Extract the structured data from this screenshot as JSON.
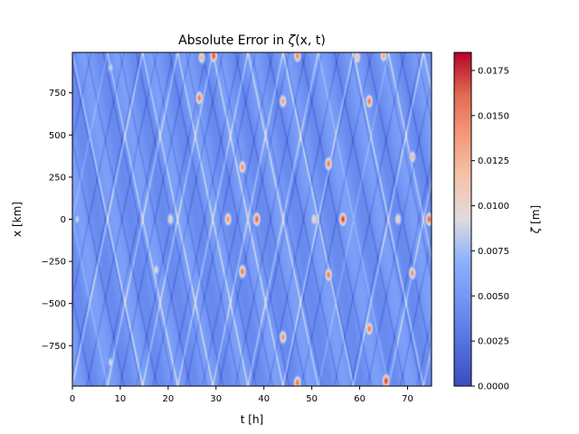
{
  "chart_data": {
    "type": "heatmap",
    "title": "Absolute Error in ζ(x, t)",
    "title_parts": {
      "prefix": "Absolute Error in ",
      "symbol": "ζ",
      "args": "(x, t)"
    },
    "xlabel": "t [h]",
    "ylabel": "x [km]",
    "xlim": [
      0,
      75
    ],
    "ylim": [
      -990,
      990
    ],
    "xticks": [
      0,
      10,
      20,
      30,
      40,
      50,
      60,
      70
    ],
    "yticks": [
      -750,
      -500,
      -250,
      0,
      250,
      500,
      750
    ],
    "xtick_labels": [
      "0",
      "10",
      "20",
      "30",
      "40",
      "50",
      "60",
      "70"
    ],
    "ytick_labels": [
      "−750",
      "−500",
      "−250",
      "0",
      "250",
      "500",
      "750"
    ],
    "colorbar": {
      "label": "ζ [m]",
      "label_parts": {
        "symbol": "ζ",
        "unit": "[m]"
      },
      "min": 0.0,
      "max": 0.0185,
      "ticks": [
        0.0,
        0.0025,
        0.005,
        0.0075,
        0.01,
        0.0125,
        0.015,
        0.0175
      ],
      "tick_labels": [
        "0.0000",
        "0.0025",
        "0.0050",
        "0.0075",
        "0.0100",
        "0.0125",
        "0.0150",
        "0.0175"
      ],
      "colormap": "coolwarm"
    },
    "values_description_hotspots": [
      {
        "t": 1,
        "x": 0,
        "value": 0.009
      },
      {
        "t": 8,
        "x": -850,
        "value": 0.0095
      },
      {
        "t": 8,
        "x": 900,
        "value": 0.009
      },
      {
        "t": 17.5,
        "x": -300,
        "value": 0.01
      },
      {
        "t": 20.5,
        "x": 0,
        "value": 0.011
      },
      {
        "t": 26.5,
        "x": 720,
        "value": 0.0155
      },
      {
        "t": 27,
        "x": 960,
        "value": 0.013
      },
      {
        "t": 29.5,
        "x": 970,
        "value": 0.017
      },
      {
        "t": 32.5,
        "x": 0,
        "value": 0.0145
      },
      {
        "t": 35.5,
        "x": 310,
        "value": 0.0145
      },
      {
        "t": 35.5,
        "x": -310,
        "value": 0.0155
      },
      {
        "t": 38.5,
        "x": 0,
        "value": 0.0165
      },
      {
        "t": 44,
        "x": 700,
        "value": 0.014
      },
      {
        "t": 44,
        "x": -700,
        "value": 0.0145
      },
      {
        "t": 47,
        "x": 970,
        "value": 0.015
      },
      {
        "t": 47,
        "x": -970,
        "value": 0.016
      },
      {
        "t": 50.5,
        "x": 0,
        "value": 0.0115
      },
      {
        "t": 53.5,
        "x": 330,
        "value": 0.0155
      },
      {
        "t": 53.5,
        "x": -330,
        "value": 0.0155
      },
      {
        "t": 56.5,
        "x": 0,
        "value": 0.0175
      },
      {
        "t": 59.5,
        "x": 960,
        "value": 0.0125
      },
      {
        "t": 62,
        "x": 700,
        "value": 0.0155
      },
      {
        "t": 62,
        "x": -650,
        "value": 0.0155
      },
      {
        "t": 65,
        "x": 970,
        "value": 0.0135
      },
      {
        "t": 65.5,
        "x": -960,
        "value": 0.0175
      },
      {
        "t": 68,
        "x": 0,
        "value": 0.0115
      },
      {
        "t": 71,
        "x": 370,
        "value": 0.0125
      },
      {
        "t": 71,
        "x": -320,
        "value": 0.0145
      },
      {
        "t": 74.5,
        "x": 0,
        "value": 0.0165
      }
    ]
  }
}
